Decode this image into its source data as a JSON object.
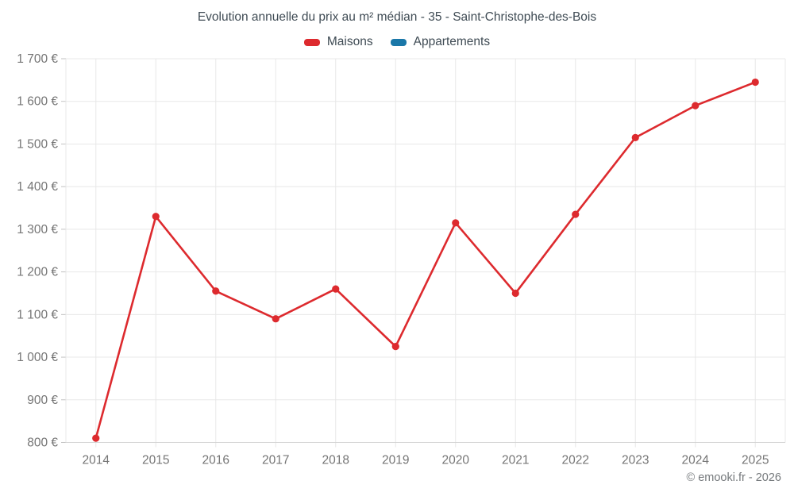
{
  "title": "Evolution annuelle du prix au m² médian - 35 - Saint-Christophe-des-Bois",
  "legend": {
    "items": [
      {
        "label": "Maisons",
        "color": "#dd2a2e"
      },
      {
        "label": "Appartements",
        "color": "#1a77a8"
      }
    ]
  },
  "footer": {
    "copyright": "© emooki.fr - 2026"
  },
  "colors": {
    "maisons_red": "#dd2a2e",
    "appartements_blue": "#1a77a8",
    "grid": "#e8e8e8",
    "axis_line": "#d4d4d4",
    "tick_mark": "#c2c2c2",
    "tick_text": "#757575",
    "title_text": "#3f4b54"
  },
  "chart_data": {
    "type": "line",
    "title": "Evolution annuelle du prix au m² médian - 35 - Saint-Christophe-des-Bois",
    "categories": [
      "2014",
      "2015",
      "2016",
      "2017",
      "2018",
      "2019",
      "2020",
      "2021",
      "2022",
      "2023",
      "2024",
      "2025"
    ],
    "series": [
      {
        "name": "Maisons",
        "color": "#dd2a2e",
        "values": [
          810,
          1330,
          1155,
          1090,
          1160,
          1025,
          1315,
          1150,
          1335,
          1515,
          1590,
          1645
        ]
      },
      {
        "name": "Appartements",
        "color": "#1a77a8",
        "values": []
      }
    ],
    "xlabel": "",
    "ylabel": "",
    "ylim": [
      800,
      1700
    ],
    "ytick_step": 100,
    "ytick_labels": [
      "800 €",
      "900 €",
      "1 000 €",
      "1 100 €",
      "1 200 €",
      "1 300 €",
      "1 400 €",
      "1 500 €",
      "1 600 €",
      "1 700 €"
    ],
    "grid": true,
    "legend_position": "top",
    "unit": "€"
  }
}
